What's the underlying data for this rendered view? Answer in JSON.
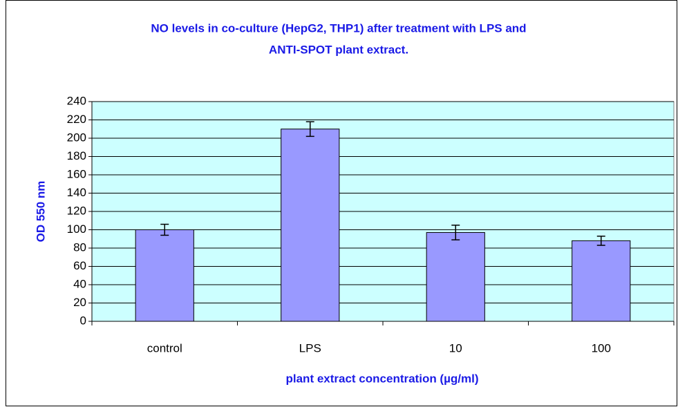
{
  "chart_data": {
    "type": "bar",
    "title": [
      "NO levels in co-culture (HepG2, THP1) after treatment with LPS and",
      "ANTI-SPOT plant extract."
    ],
    "x_label": "plant extract concentration (µg/ml)",
    "y_label": "OD 550 nm",
    "categories": [
      "control",
      "LPS",
      "10",
      "100"
    ],
    "values": [
      100,
      210,
      97,
      88
    ],
    "errors": [
      6,
      8,
      8,
      5
    ],
    "color": "#9999ff",
    "ylim": [
      0,
      240
    ],
    "yticks": [
      0,
      20,
      40,
      60,
      80,
      100,
      120,
      140,
      160,
      180,
      200,
      220,
      240
    ],
    "grid": true
  }
}
